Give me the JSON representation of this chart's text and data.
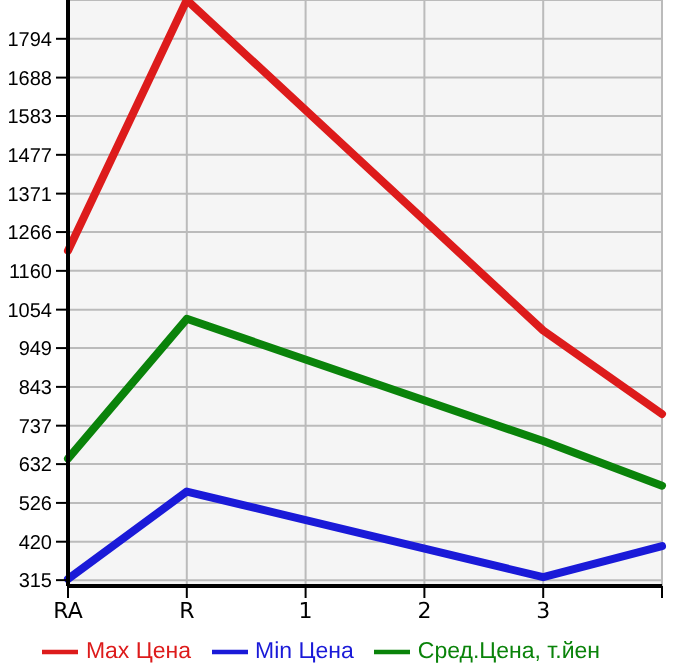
{
  "chart_data": {
    "type": "line",
    "categories": [
      "RA",
      "R",
      "1",
      "2",
      "3",
      null
    ],
    "series": [
      {
        "name": "Max Цена",
        "color": "#dd1b1b",
        "values": [
          1215,
          1900,
          null,
          null,
          997,
          769
        ]
      },
      {
        "name": "Min Цена",
        "color": "#1a1ad8",
        "values": [
          318,
          557,
          null,
          null,
          323,
          408
        ]
      },
      {
        "name": "Сред.Цена, т.йен",
        "color": "#0a830a",
        "values": [
          647,
          1029,
          null,
          null,
          695,
          573
        ]
      }
    ],
    "ylim": [
      299,
      1900
    ],
    "yticks": [
      315,
      420,
      526,
      632,
      737,
      843,
      949,
      1054,
      1160,
      1266,
      1371,
      1477,
      1583,
      1688,
      1794
    ],
    "grid": true,
    "legend": "bottom",
    "marker": "none"
  }
}
